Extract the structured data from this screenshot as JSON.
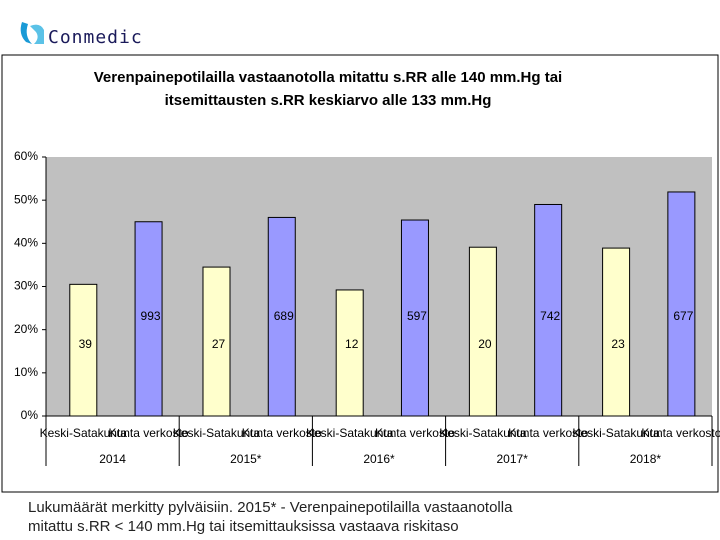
{
  "logo": "Conmedic",
  "chart_data": {
    "type": "bar",
    "title": [
      "Verenpainepotilailla vastaanotolla mitattu s.RR alle 140 mm.Hg tai",
      "itsemittausten s.RR keskiarvo alle 133 mm.Hg"
    ],
    "categories": [
      "2014",
      "2015*",
      "2016*",
      "2017*",
      "2018*"
    ],
    "series": [
      {
        "name": "Keski-Satakunta",
        "color": "#ffffcc",
        "values": [
          30.5,
          34.5,
          29.2,
          39.1,
          38.9
        ],
        "counts": [
          "39",
          "27",
          "12",
          "20",
          "23"
        ]
      },
      {
        "name": "Kunta verkosto",
        "color": "#9999ff",
        "values": [
          45,
          46,
          45.4,
          49,
          51.9
        ],
        "counts": [
          "993",
          "689",
          "597",
          "742",
          "677"
        ]
      }
    ],
    "ylim": [
      0,
      60
    ],
    "yticks": [
      {
        "value": 0,
        "label": "0%"
      },
      {
        "value": 10,
        "label": "10%"
      },
      {
        "value": 20,
        "label": "20%"
      },
      {
        "value": 30,
        "label": "30%"
      },
      {
        "value": 40,
        "label": "40%"
      },
      {
        "value": 50,
        "label": "50%"
      },
      {
        "value": 60,
        "label": "60%"
      }
    ],
    "grid": false
  },
  "footnote": [
    "Lukumäärät merkitty pylväisiin. 2015* -  Verenpainepotilailla vastaanotolla",
    "mitattu s.RR < 140 mm.Hg tai itsemittauksissa vastaava riskitaso"
  ]
}
